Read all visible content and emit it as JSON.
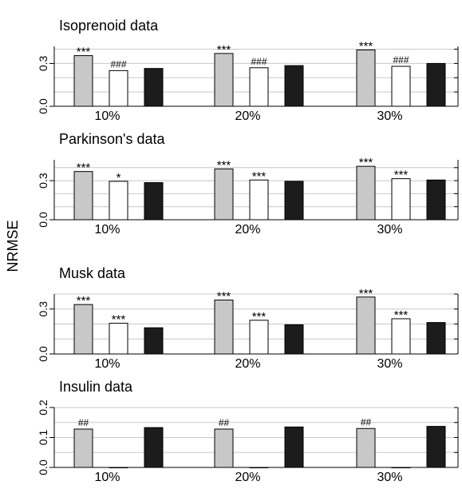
{
  "chart_data": {
    "type": "bar",
    "ylabel": "NRMSE",
    "categories": [
      "10%",
      "20%",
      "30%"
    ],
    "series_styles": [
      {
        "fill": "#c8c8c8",
        "stroke": "#000000"
      },
      {
        "fill": "#ffffff",
        "stroke": "#000000"
      },
      {
        "fill": "#1c1c1c",
        "stroke": "#000000"
      }
    ],
    "grid": true,
    "panels": [
      {
        "title": "Isoprenoid data",
        "ylim": [
          0,
          0.42
        ],
        "yticks": [
          {
            "value": 0.0,
            "label": "0.0"
          },
          {
            "value": 0.3,
            "label": "0.3"
          }
        ],
        "grid_step": 0.1,
        "groups": [
          {
            "category": "10%",
            "values": [
              0.355,
              0.25,
              0.265
            ],
            "marks": [
              "***",
              "###",
              ""
            ]
          },
          {
            "category": "20%",
            "values": [
              0.37,
              0.27,
              0.285
            ],
            "marks": [
              "***",
              "###",
              ""
            ]
          },
          {
            "category": "30%",
            "values": [
              0.395,
              0.28,
              0.3
            ],
            "marks": [
              "***",
              "###",
              ""
            ]
          }
        ]
      },
      {
        "title": "Parkinson's data",
        "ylim": [
          0,
          0.46
        ],
        "yticks": [
          {
            "value": 0.0,
            "label": "0.0"
          },
          {
            "value": 0.3,
            "label": "0.3"
          }
        ],
        "grid_step": 0.1,
        "groups": [
          {
            "category": "10%",
            "values": [
              0.37,
              0.295,
              0.285
            ],
            "marks": [
              "***",
              "*",
              ""
            ]
          },
          {
            "category": "20%",
            "values": [
              0.39,
              0.305,
              0.295
            ],
            "marks": [
              "***",
              "***",
              ""
            ]
          },
          {
            "category": "30%",
            "values": [
              0.41,
              0.315,
              0.305
            ],
            "marks": [
              "***",
              "***",
              ""
            ]
          }
        ]
      },
      {
        "title": "Musk data",
        "ylim": [
          0,
          0.4
        ],
        "yticks": [
          {
            "value": 0.0,
            "label": "0.0"
          },
          {
            "value": 0.3,
            "label": "0.3"
          }
        ],
        "grid_step": 0.1,
        "groups": [
          {
            "category": "10%",
            "values": [
              0.33,
              0.205,
              0.175
            ],
            "marks": [
              "***",
              "***",
              ""
            ]
          },
          {
            "category": "20%",
            "values": [
              0.36,
              0.225,
              0.195
            ],
            "marks": [
              "***",
              "***",
              ""
            ]
          },
          {
            "category": "30%",
            "values": [
              0.38,
              0.235,
              0.21
            ],
            "marks": [
              "***",
              "***",
              ""
            ]
          }
        ]
      },
      {
        "title": "Insulin data",
        "ylim": [
          0,
          0.2
        ],
        "yticks": [
          {
            "value": 0.0,
            "label": "0.0"
          },
          {
            "value": 0.1,
            "label": "0.1"
          },
          {
            "value": 0.2,
            "label": "0.2"
          }
        ],
        "grid_step": 0.05,
        "groups": [
          {
            "category": "10%",
            "values": [
              0.128,
              0.0,
              0.133
            ],
            "marks": [
              "##",
              "",
              ""
            ]
          },
          {
            "category": "20%",
            "values": [
              0.128,
              0.0,
              0.135
            ],
            "marks": [
              "##",
              "",
              ""
            ]
          },
          {
            "category": "30%",
            "values": [
              0.13,
              0.0,
              0.137
            ],
            "marks": [
              "##",
              "",
              ""
            ]
          }
        ]
      }
    ]
  }
}
